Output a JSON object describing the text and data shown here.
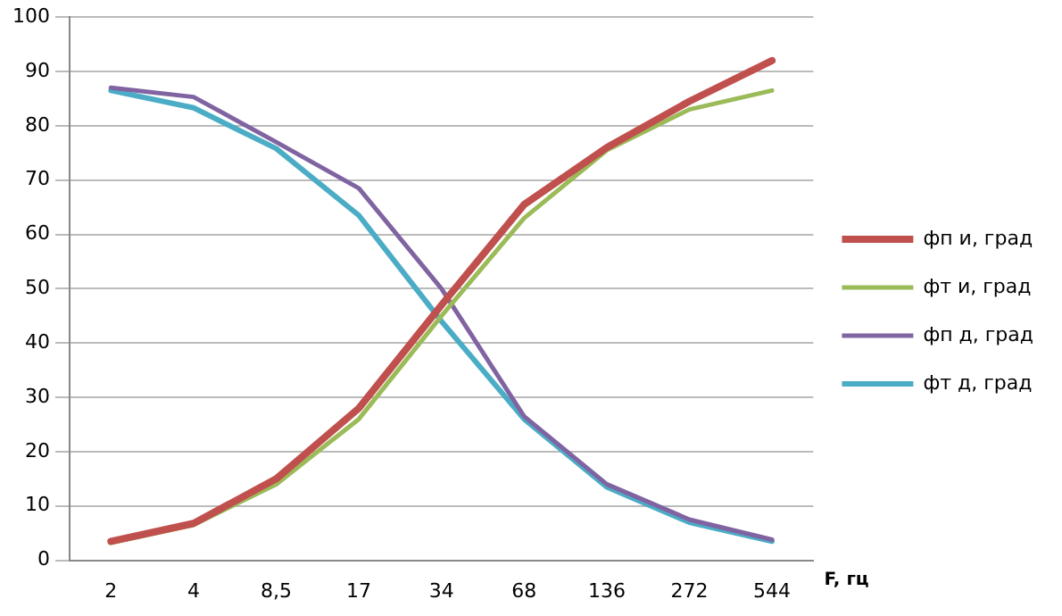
{
  "chart_data": {
    "type": "line",
    "xlabel": "F, гц",
    "categories": [
      "2",
      "4",
      "8,5",
      "17",
      "34",
      "68",
      "136",
      "272",
      "544"
    ],
    "series": [
      {
        "name": "фп и, град",
        "color": "#c0504d",
        "values": [
          3.5,
          6.8,
          15,
          28,
          47,
          65.5,
          76,
          84.5,
          92
        ]
      },
      {
        "name": "фт и, град",
        "color": "#9bbb59",
        "values": [
          3.2,
          6.5,
          14,
          26,
          45,
          63,
          75.5,
          83,
          86.5
        ]
      },
      {
        "name": "фп д, град",
        "color": "#8064a2",
        "values": [
          87,
          85.3,
          77,
          68.5,
          50,
          26.5,
          14,
          7.5,
          3.8
        ]
      },
      {
        "name": "фт д, град",
        "color": "#4bacc6",
        "values": [
          86.5,
          83.3,
          75.8,
          63.5,
          44,
          26,
          13.5,
          7,
          3.5
        ]
      }
    ],
    "ylim": [
      0,
      100
    ],
    "yticks": [
      0,
      10,
      20,
      30,
      40,
      50,
      60,
      70,
      80,
      90,
      100
    ],
    "grid": "y",
    "legend": "right",
    "marker": "none",
    "line_style": "solid"
  }
}
